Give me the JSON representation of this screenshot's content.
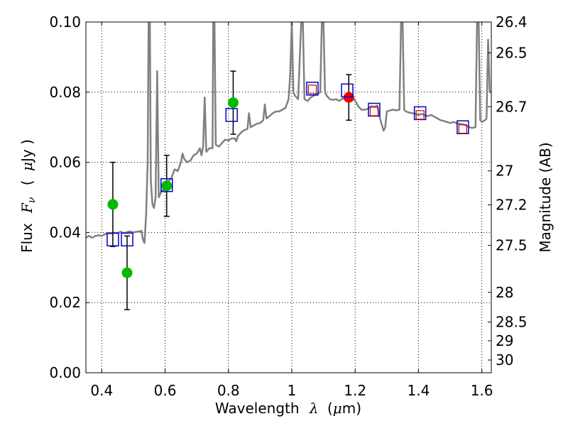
{
  "chart_data": {
    "type": "scatter",
    "xlabel_parts": [
      "Wavelength",
      "λ",
      "(",
      "μ",
      "m)"
    ],
    "ylabel_parts": [
      "Flux",
      "F",
      "ν",
      "(",
      "μ",
      "Jy )"
    ],
    "y2label": "Magnitude (AB)",
    "xlim": [
      0.35,
      1.63
    ],
    "ylim": [
      0.0,
      0.1
    ],
    "grid": true,
    "x_ticks": [
      {
        "v": 0.4,
        "label": "0.4"
      },
      {
        "v": 0.6,
        "label": "0.6"
      },
      {
        "v": 0.8,
        "label": "0.8"
      },
      {
        "v": 1.0,
        "label": "1"
      },
      {
        "v": 1.2,
        "label": "1.2"
      },
      {
        "v": 1.4,
        "label": "1.4"
      },
      {
        "v": 1.6,
        "label": "1.6"
      }
    ],
    "y_ticks": [
      {
        "v": 0.0,
        "label": "0.00"
      },
      {
        "v": 0.02,
        "label": "0.02"
      },
      {
        "v": 0.04,
        "label": "0.04"
      },
      {
        "v": 0.06,
        "label": "0.06"
      },
      {
        "v": 0.08,
        "label": "0.08"
      },
      {
        "v": 0.1,
        "label": "0.10"
      }
    ],
    "y2_ticks": [
      {
        "mag": 26.4,
        "label": "26.4"
      },
      {
        "mag": 26.5,
        "label": "26.5"
      },
      {
        "mag": 26.7,
        "label": "26.7"
      },
      {
        "mag": 27,
        "label": "27"
      },
      {
        "mag": 27.2,
        "label": "27.2"
      },
      {
        "mag": 27.5,
        "label": "27.5"
      },
      {
        "mag": 28,
        "label": "28"
      },
      {
        "mag": 28.5,
        "label": "28.5"
      },
      {
        "mag": 29,
        "label": "29"
      },
      {
        "mag": 30,
        "label": "30"
      }
    ],
    "series": [
      {
        "name": "model-spectrum",
        "kind": "line",
        "color": "#808080",
        "points": [
          [
            0.35,
            0.0385
          ],
          [
            0.36,
            0.039
          ],
          [
            0.37,
            0.0385
          ],
          [
            0.38,
            0.039
          ],
          [
            0.39,
            0.0392
          ],
          [
            0.4,
            0.039
          ],
          [
            0.41,
            0.0395
          ],
          [
            0.42,
            0.0398
          ],
          [
            0.43,
            0.0397
          ],
          [
            0.44,
            0.0399
          ],
          [
            0.45,
            0.0398
          ],
          [
            0.46,
            0.0402
          ],
          [
            0.47,
            0.0398
          ],
          [
            0.48,
            0.0401
          ],
          [
            0.49,
            0.0403
          ],
          [
            0.5,
            0.04
          ],
          [
            0.51,
            0.0402
          ],
          [
            0.52,
            0.0403
          ],
          [
            0.525,
            0.0405
          ],
          [
            0.53,
            0.038
          ],
          [
            0.535,
            0.037
          ],
          [
            0.54,
            0.045
          ],
          [
            0.545,
            0.06
          ],
          [
            0.548,
            0.1
          ],
          [
            0.552,
            0.1
          ],
          [
            0.555,
            0.055
          ],
          [
            0.56,
            0.048
          ],
          [
            0.565,
            0.047
          ],
          [
            0.57,
            0.05
          ],
          [
            0.575,
            0.086
          ],
          [
            0.58,
            0.05
          ],
          [
            0.59,
            0.052
          ],
          [
            0.6,
            0.052
          ],
          [
            0.61,
            0.0545
          ],
          [
            0.62,
            0.0555
          ],
          [
            0.63,
            0.058
          ],
          [
            0.64,
            0.0575
          ],
          [
            0.65,
            0.06
          ],
          [
            0.655,
            0.0625
          ],
          [
            0.66,
            0.061
          ],
          [
            0.67,
            0.06
          ],
          [
            0.68,
            0.0605
          ],
          [
            0.69,
            0.062
          ],
          [
            0.7,
            0.0625
          ],
          [
            0.71,
            0.064
          ],
          [
            0.715,
            0.062
          ],
          [
            0.72,
            0.0645
          ],
          [
            0.725,
            0.0785
          ],
          [
            0.73,
            0.063
          ],
          [
            0.74,
            0.064
          ],
          [
            0.75,
            0.064
          ],
          [
            0.752,
            0.1
          ],
          [
            0.756,
            0.1
          ],
          [
            0.76,
            0.065
          ],
          [
            0.77,
            0.0645
          ],
          [
            0.78,
            0.0655
          ],
          [
            0.79,
            0.0665
          ],
          [
            0.8,
            0.0662
          ],
          [
            0.81,
            0.0668
          ],
          [
            0.82,
            0.0668
          ],
          [
            0.825,
            0.066
          ],
          [
            0.83,
            0.0675
          ],
          [
            0.84,
            0.0685
          ],
          [
            0.85,
            0.0692
          ],
          [
            0.86,
            0.0695
          ],
          [
            0.865,
            0.074
          ],
          [
            0.87,
            0.07
          ],
          [
            0.88,
            0.0705
          ],
          [
            0.89,
            0.071
          ],
          [
            0.9,
            0.0712
          ],
          [
            0.91,
            0.072
          ],
          [
            0.915,
            0.0765
          ],
          [
            0.92,
            0.0725
          ],
          [
            0.93,
            0.0732
          ],
          [
            0.94,
            0.074
          ],
          [
            0.95,
            0.0745
          ],
          [
            0.96,
            0.0745
          ],
          [
            0.97,
            0.075
          ],
          [
            0.98,
            0.0755
          ],
          [
            0.99,
            0.078
          ],
          [
            0.995,
            0.085
          ],
          [
            1.0,
            0.1
          ],
          [
            1.005,
            0.08
          ],
          [
            1.01,
            0.079
          ],
          [
            1.02,
            0.078
          ],
          [
            1.03,
            0.1
          ],
          [
            1.035,
            0.1
          ],
          [
            1.04,
            0.078
          ],
          [
            1.05,
            0.0775
          ],
          [
            1.06,
            0.0785
          ],
          [
            1.07,
            0.079
          ],
          [
            1.08,
            0.0795
          ],
          [
            1.09,
            0.08
          ],
          [
            1.095,
            0.1
          ],
          [
            1.1,
            0.1
          ],
          [
            1.105,
            0.08
          ],
          [
            1.11,
            0.079
          ],
          [
            1.12,
            0.078
          ],
          [
            1.13,
            0.0778
          ],
          [
            1.14,
            0.078
          ],
          [
            1.15,
            0.0775
          ],
          [
            1.16,
            0.0782
          ],
          [
            1.17,
            0.078
          ],
          [
            1.18,
            0.0785
          ],
          [
            1.19,
            0.079
          ],
          [
            1.2,
            0.0775
          ],
          [
            1.21,
            0.076
          ],
          [
            1.22,
            0.075
          ],
          [
            1.23,
            0.075
          ],
          [
            1.24,
            0.0752
          ],
          [
            1.25,
            0.076
          ],
          [
            1.26,
            0.0758
          ],
          [
            1.27,
            0.0762
          ],
          [
            1.275,
            0.074
          ],
          [
            1.28,
            0.072
          ],
          [
            1.285,
            0.0705
          ],
          [
            1.29,
            0.069
          ],
          [
            1.295,
            0.07
          ],
          [
            1.3,
            0.0745
          ],
          [
            1.31,
            0.0748
          ],
          [
            1.32,
            0.075
          ],
          [
            1.33,
            0.0748
          ],
          [
            1.34,
            0.075
          ],
          [
            1.345,
            0.1
          ],
          [
            1.35,
            0.1
          ],
          [
            1.355,
            0.075
          ],
          [
            1.36,
            0.0745
          ],
          [
            1.37,
            0.0742
          ],
          [
            1.38,
            0.074
          ],
          [
            1.39,
            0.0738
          ],
          [
            1.4,
            0.0735
          ],
          [
            1.41,
            0.0738
          ],
          [
            1.42,
            0.0734
          ],
          [
            1.43,
            0.0732
          ],
          [
            1.44,
            0.0735
          ],
          [
            1.45,
            0.073
          ],
          [
            1.46,
            0.0725
          ],
          [
            1.47,
            0.072
          ],
          [
            1.48,
            0.0718
          ],
          [
            1.49,
            0.0715
          ],
          [
            1.5,
            0.0712
          ],
          [
            1.51,
            0.0715
          ],
          [
            1.52,
            0.0712
          ],
          [
            1.53,
            0.071
          ],
          [
            1.54,
            0.0708
          ],
          [
            1.55,
            0.0705
          ],
          [
            1.56,
            0.07
          ],
          [
            1.57,
            0.0698
          ],
          [
            1.58,
            0.07
          ],
          [
            1.585,
            0.1
          ],
          [
            1.59,
            0.1
          ],
          [
            1.595,
            0.072
          ],
          [
            1.6,
            0.0715
          ],
          [
            1.61,
            0.072
          ],
          [
            1.615,
            0.0725
          ],
          [
            1.62,
            0.095
          ],
          [
            1.625,
            0.08
          ],
          [
            1.63,
            0.08
          ]
        ]
      },
      {
        "name": "observed-photometry",
        "kind": "markers",
        "marker": "circle",
        "color": "#00bb00",
        "points": [
          {
            "x": 0.435,
            "y": 0.048,
            "yerr": 0.012
          },
          {
            "x": 0.48,
            "y": 0.0285,
            "yerr": 0.0105
          },
          {
            "x": 0.605,
            "y": 0.0533,
            "yerr": 0.0087
          },
          {
            "x": 0.815,
            "y": 0.077,
            "yerr": 0.009
          }
        ]
      },
      {
        "name": "detection",
        "kind": "markers",
        "marker": "circle",
        "color": "#ee0000",
        "points": [
          {
            "x": 1.18,
            "y": 0.0785,
            "yerr": 0.0065
          }
        ]
      },
      {
        "name": "model-photometry",
        "kind": "markers",
        "marker": "square",
        "color": "#0000cc",
        "points": [
          {
            "x": 0.435,
            "y": 0.038
          },
          {
            "x": 0.48,
            "y": 0.038
          },
          {
            "x": 0.605,
            "y": 0.0535
          },
          {
            "x": 0.81,
            "y": 0.0735
          },
          {
            "x": 1.065,
            "y": 0.081
          },
          {
            "x": 1.175,
            "y": 0.0805
          },
          {
            "x": 1.26,
            "y": 0.075
          },
          {
            "x": 1.405,
            "y": 0.074
          },
          {
            "x": 1.54,
            "y": 0.07
          }
        ]
      },
      {
        "name": "model-photometry-inner",
        "kind": "markers",
        "marker": "square-small",
        "color": "#cc0000",
        "points": [
          {
            "x": 1.065,
            "y": 0.0808
          },
          {
            "x": 1.26,
            "y": 0.0745
          },
          {
            "x": 1.405,
            "y": 0.0735
          },
          {
            "x": 1.54,
            "y": 0.0695
          }
        ]
      }
    ]
  }
}
